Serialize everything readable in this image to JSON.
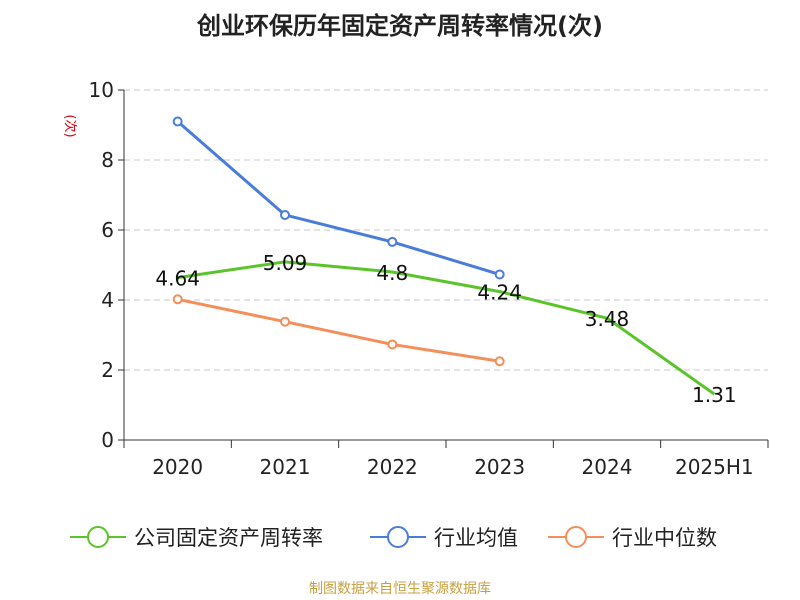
{
  "title": "创业环保历年固定资产周转率情况(次)",
  "source": "制图数据来自恒生聚源数据库",
  "colors": {
    "company": "#5CC42B",
    "industry_avg": "#4A7DDB",
    "industry_median": "#F58E5A",
    "axis": "#333333",
    "grid": "#C8C8C8",
    "unit_label": "#D9000F",
    "source": "#C9A040"
  },
  "chart_data": {
    "type": "line",
    "title": "创业环保历年固定资产周转率情况(次)",
    "ylabel": "(次)",
    "xlabel": "",
    "ylim": [
      0,
      10
    ],
    "yticks": [
      0,
      2,
      4,
      6,
      8,
      10
    ],
    "grid": true,
    "legend_position": "bottom",
    "categories": [
      "2020",
      "2021",
      "2022",
      "2023",
      "2024",
      "2025H1"
    ],
    "series": [
      {
        "name": "公司固定资产周转率",
        "color": "#5CC42B",
        "values": [
          4.64,
          5.09,
          4.8,
          4.24,
          3.48,
          1.31
        ],
        "show_labels": true,
        "markers": "hidden"
      },
      {
        "name": "行业均值",
        "color": "#4A7DDB",
        "values": [
          9.1,
          6.43,
          5.66,
          4.73,
          null,
          null
        ],
        "show_labels": false,
        "markers": "circle"
      },
      {
        "name": "行业中位数",
        "color": "#F58E5A",
        "values": [
          4.02,
          3.38,
          2.73,
          2.25,
          null,
          null
        ],
        "show_labels": false,
        "markers": "circle"
      }
    ]
  }
}
